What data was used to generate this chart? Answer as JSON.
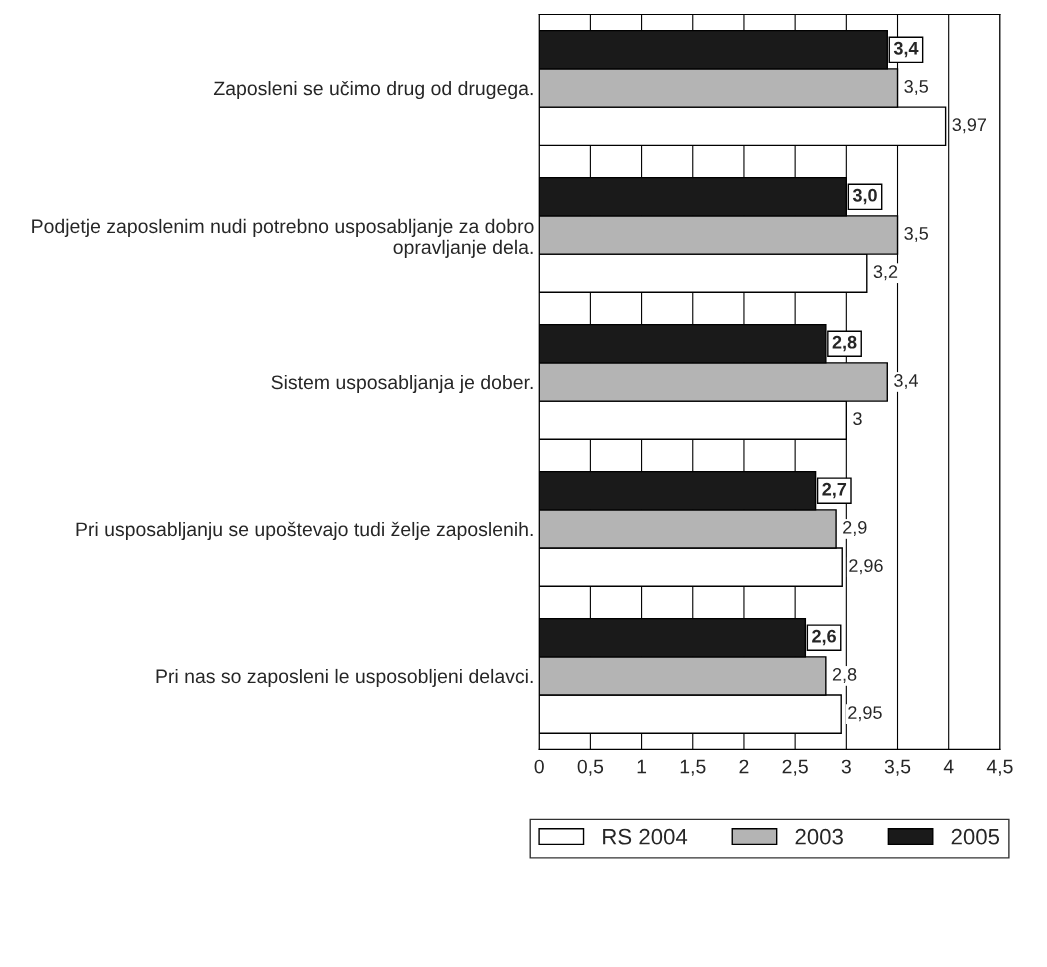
{
  "chart_data": {
    "type": "bar",
    "orientation": "horizontal",
    "categories": [
      "Zaposleni se učimo drug od drugega.",
      "Podjetje zaposlenim nudi potrebno usposabljanje za dobro opravljanje dela.",
      "Sistem usposabljanja je dober.",
      "Pri usposabljanju se upoštevajo tudi želje zaposlenih.",
      "Pri nas so zaposleni le usposobljeni delavci."
    ],
    "series": [
      {
        "name": "RS 2004",
        "color": "#ffffff",
        "values": [
          3.97,
          3.2,
          3,
          2.96,
          2.95
        ],
        "value_labels": [
          "3,97",
          "3,2",
          "3",
          "2,96",
          "2,95"
        ]
      },
      {
        "name": "2003",
        "color": "#b4b4b4",
        "values": [
          3.5,
          3.5,
          3.4,
          2.9,
          2.8
        ],
        "value_labels": [
          "3,5",
          "3,5",
          "3,4",
          "2,9",
          "2,8"
        ]
      },
      {
        "name": "2005",
        "color": "#1a1a1a",
        "values": [
          3.4,
          3.0,
          2.8,
          2.7,
          2.6
        ],
        "value_labels": [
          "3,4",
          "3,0",
          "2,8",
          "2,7",
          "2,6"
        ]
      }
    ],
    "xlim": [
      0,
      4.5
    ],
    "xticks": [
      0,
      {
        "value": 0.5,
        "label": "0,5"
      },
      1,
      {
        "value": 1.5,
        "label": "1,5"
      },
      2,
      {
        "value": 2.5,
        "label": "2,5"
      },
      3,
      {
        "value": 3.5,
        "label": "3,5"
      },
      4,
      {
        "value": 4.5,
        "label": "4,5"
      }
    ],
    "grid": "x",
    "legend": "bottom"
  }
}
